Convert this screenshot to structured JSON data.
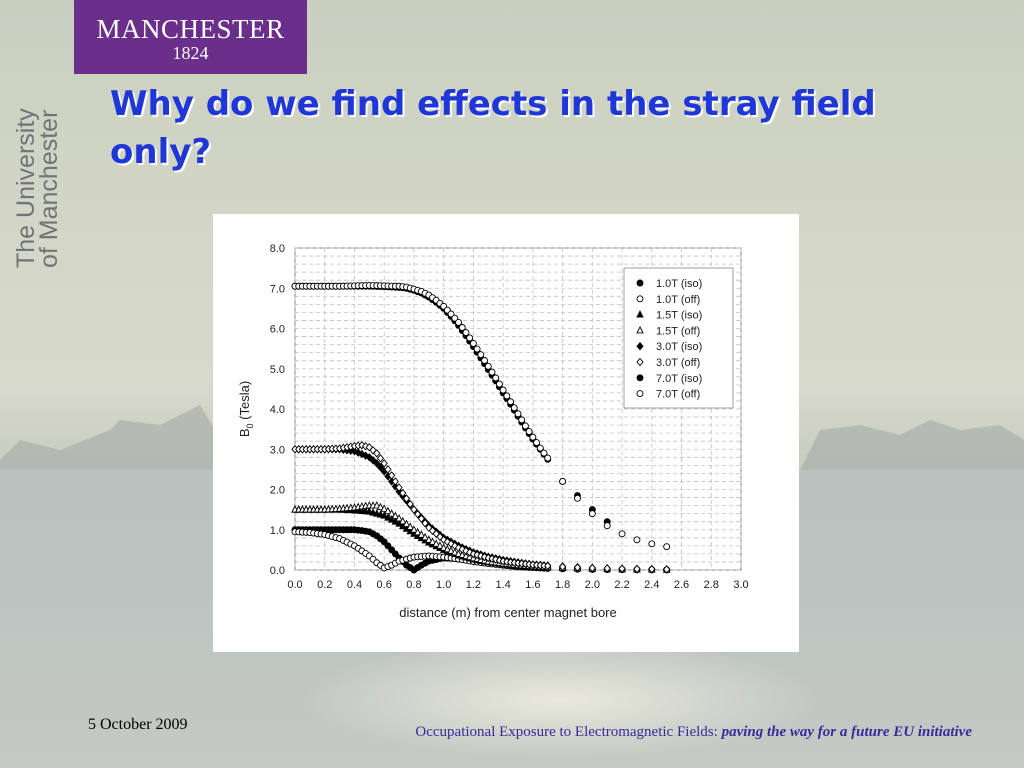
{
  "slide": {
    "logo_name": "MANCHESTER",
    "logo_year": "1824",
    "side_line1": "The University",
    "side_line2": "of Manchester",
    "title": "Why do we find effects in the stray field only?",
    "date": "5 October 2009",
    "event": "Occupational Exposure to Electromagnetic Fields:",
    "tagline": "paving the way for a future EU initiative",
    "accent_color": "#1f37d6",
    "brand_color": "#6a2f8a"
  },
  "chart_data": {
    "type": "scatter",
    "title": "",
    "xlabel": "distance (m) from center magnet bore",
    "ylabel_main": "B",
    "ylabel_sub": "0",
    "ylabel_rest": " (Tesla)",
    "xlim": [
      0,
      3.0
    ],
    "ylim": [
      0,
      8.0
    ],
    "xticks": [
      "0.0",
      "0.2",
      "0.4",
      "0.6",
      "0.8",
      "1.0",
      "1.2",
      "1.4",
      "1.6",
      "1.8",
      "2.0",
      "2.2",
      "2.4",
      "2.6",
      "2.8",
      "3.0"
    ],
    "yticks": [
      "0.0",
      "1.0",
      "2.0",
      "3.0",
      "4.0",
      "5.0",
      "6.0",
      "7.0",
      "8.0"
    ],
    "grid": true,
    "legend_position": "top-right",
    "series": [
      {
        "name": "1.0T (iso)",
        "marker": "circle-filled",
        "x": [
          0,
          0.1,
          0.2,
          0.3,
          0.4,
          0.45,
          0.5,
          0.55,
          0.6,
          0.65,
          0.7,
          0.75,
          0.8,
          0.85,
          0.9,
          1.0,
          1.1,
          1.2,
          1.3,
          1.4,
          1.5,
          1.6,
          1.7,
          1.8,
          1.9,
          2.0,
          2.1,
          2.2,
          2.3,
          2.4,
          2.5
        ],
        "y": [
          1.0,
          1.0,
          1.0,
          1.0,
          1.0,
          0.98,
          0.95,
          0.85,
          0.7,
          0.5,
          0.3,
          0.12,
          0.0,
          0.12,
          0.22,
          0.3,
          0.28,
          0.22,
          0.17,
          0.12,
          0.08,
          0.06,
          0.04,
          0.03,
          0.02,
          0.015,
          0.01,
          0.008,
          0.006,
          0.005,
          0.004
        ]
      },
      {
        "name": "1.0T (off)",
        "marker": "circle-open",
        "x": [
          0,
          0.1,
          0.2,
          0.3,
          0.4,
          0.5,
          0.55,
          0.6,
          0.65,
          0.7,
          0.8,
          0.9,
          1.0,
          1.1,
          1.2,
          1.3,
          1.4,
          1.5,
          1.6,
          1.7,
          1.8,
          1.9,
          2.0,
          2.1,
          2.2,
          2.3,
          2.4,
          2.5
        ],
        "y": [
          0.95,
          0.93,
          0.88,
          0.78,
          0.6,
          0.35,
          0.18,
          0.05,
          0.12,
          0.22,
          0.32,
          0.35,
          0.32,
          0.27,
          0.21,
          0.16,
          0.12,
          0.09,
          0.065,
          0.05,
          0.035,
          0.025,
          0.02,
          0.015,
          0.01,
          0.008,
          0.006,
          0.005
        ]
      },
      {
        "name": "1.5T (iso)",
        "marker": "triangle-filled",
        "x": [
          0,
          0.1,
          0.2,
          0.3,
          0.4,
          0.5,
          0.6,
          0.7,
          0.8,
          0.9,
          1.0,
          1.1,
          1.2,
          1.3,
          1.4,
          1.5,
          1.6,
          1.7,
          1.8,
          1.9,
          2.0,
          2.1,
          2.2,
          2.3,
          2.4,
          2.5
        ],
        "y": [
          1.5,
          1.5,
          1.5,
          1.5,
          1.48,
          1.45,
          1.35,
          1.15,
          0.9,
          0.68,
          0.5,
          0.36,
          0.26,
          0.19,
          0.14,
          0.1,
          0.08,
          0.06,
          0.045,
          0.035,
          0.027,
          0.02,
          0.016,
          0.012,
          0.01,
          0.008
        ]
      },
      {
        "name": "1.5T (off)",
        "marker": "triangle-open",
        "x": [
          0,
          0.1,
          0.2,
          0.3,
          0.4,
          0.5,
          0.55,
          0.6,
          0.7,
          0.8,
          0.9,
          1.0,
          1.1,
          1.2,
          1.3,
          1.4,
          1.5,
          1.6,
          1.7,
          1.8,
          1.9,
          2.0,
          2.1,
          2.2,
          2.3,
          2.4,
          2.5
        ],
        "y": [
          1.5,
          1.5,
          1.5,
          1.52,
          1.55,
          1.6,
          1.6,
          1.52,
          1.28,
          1.0,
          0.75,
          0.55,
          0.4,
          0.29,
          0.21,
          0.16,
          0.12,
          0.09,
          0.07,
          0.05,
          0.04,
          0.03,
          0.023,
          0.018,
          0.014,
          0.011,
          0.009
        ]
      },
      {
        "name": "3.0T (iso)",
        "marker": "diamond-filled",
        "x": [
          0,
          0.1,
          0.2,
          0.3,
          0.4,
          0.45,
          0.5,
          0.55,
          0.6,
          0.65,
          0.7,
          0.8,
          0.9,
          1.0,
          1.1,
          1.2,
          1.3,
          1.4,
          1.5,
          1.6,
          1.7,
          1.8,
          1.9,
          2.0,
          2.1,
          2.2,
          2.3,
          2.4,
          2.5
        ],
        "y": [
          3.0,
          3.0,
          3.0,
          3.0,
          2.95,
          2.88,
          2.8,
          2.65,
          2.45,
          2.2,
          1.95,
          1.5,
          1.1,
          0.8,
          0.6,
          0.44,
          0.33,
          0.25,
          0.19,
          0.14,
          0.11,
          0.09,
          0.07,
          0.055,
          0.045,
          0.035,
          0.028,
          0.022,
          0.018
        ]
      },
      {
        "name": "3.0T (off)",
        "marker": "diamond-open",
        "x": [
          0,
          0.1,
          0.2,
          0.3,
          0.35,
          0.4,
          0.45,
          0.5,
          0.55,
          0.6,
          0.65,
          0.7,
          0.8,
          0.9,
          1.0,
          1.1,
          1.2,
          1.3,
          1.4,
          1.5,
          1.6,
          1.7,
          1.8,
          1.9,
          2.0,
          2.1,
          2.2,
          2.3,
          2.4,
          2.5
        ],
        "y": [
          3.0,
          3.0,
          3.0,
          3.02,
          3.05,
          3.08,
          3.1,
          3.05,
          2.9,
          2.65,
          2.35,
          2.05,
          1.5,
          1.05,
          0.75,
          0.55,
          0.4,
          0.3,
          0.22,
          0.17,
          0.13,
          0.1,
          0.08,
          0.06,
          0.05,
          0.04,
          0.032,
          0.025,
          0.02,
          0.016
        ]
      },
      {
        "name": "7.0T (iso)",
        "marker": "circle-filled",
        "x": [
          0,
          0.1,
          0.2,
          0.3,
          0.4,
          0.5,
          0.6,
          0.7,
          0.75,
          0.8,
          0.85,
          0.9,
          0.95,
          1.0,
          1.05,
          1.1,
          1.15,
          1.2,
          1.25,
          1.3,
          1.35,
          1.4,
          1.45,
          1.5,
          1.55,
          1.6,
          1.65,
          1.7,
          1.8,
          1.9,
          2.0,
          2.1
        ],
        "y": [
          7.05,
          7.05,
          7.05,
          7.05,
          7.05,
          7.05,
          7.04,
          7.02,
          7.0,
          6.95,
          6.88,
          6.78,
          6.65,
          6.5,
          6.3,
          6.08,
          5.82,
          5.55,
          5.27,
          4.98,
          4.7,
          4.4,
          4.12,
          3.82,
          3.53,
          3.25,
          3.0,
          2.75,
          2.2,
          1.85,
          1.5,
          1.2
        ]
      },
      {
        "name": "7.0T (off)",
        "marker": "circle-open",
        "x": [
          0,
          0.1,
          0.2,
          0.3,
          0.4,
          0.5,
          0.6,
          0.7,
          0.75,
          0.8,
          0.85,
          0.9,
          0.95,
          1.0,
          1.05,
          1.1,
          1.15,
          1.2,
          1.25,
          1.3,
          1.35,
          1.4,
          1.45,
          1.5,
          1.55,
          1.6,
          1.65,
          1.7,
          1.8,
          1.9,
          2.0,
          2.1,
          2.2,
          2.3,
          2.4,
          2.5
        ],
        "y": [
          7.05,
          7.05,
          7.05,
          7.05,
          7.06,
          7.07,
          7.06,
          7.05,
          7.03,
          6.98,
          6.92,
          6.83,
          6.7,
          6.55,
          6.36,
          6.15,
          5.9,
          5.63,
          5.35,
          5.06,
          4.77,
          4.47,
          4.18,
          3.88,
          3.58,
          3.3,
          3.03,
          2.78,
          2.2,
          1.78,
          1.4,
          1.1,
          0.9,
          0.75,
          0.65,
          0.58
        ]
      }
    ]
  }
}
